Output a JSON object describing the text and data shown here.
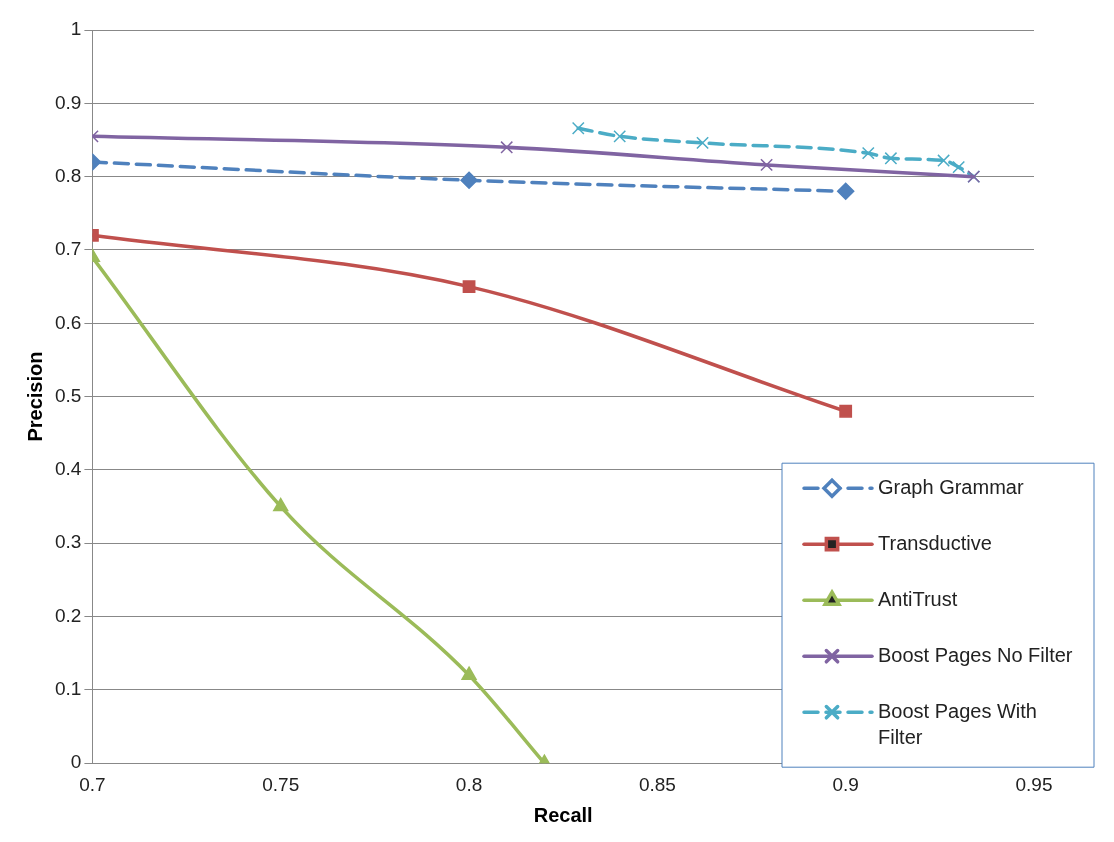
{
  "chart_data": {
    "type": "line",
    "xlabel": "Recall",
    "ylabel": "Precision",
    "xlim": [
      0.7,
      0.95
    ],
    "xticks": [
      0.7,
      0.75,
      0.8,
      0.85,
      0.9,
      0.95
    ],
    "ylim": [
      0,
      1
    ],
    "yticks": [
      0,
      0.1,
      0.2,
      0.3,
      0.4,
      0.5,
      0.6,
      0.7,
      0.8,
      0.9,
      1
    ],
    "grid": "y",
    "legend": "bottom right",
    "series": [
      {
        "name": "Graph Grammar",
        "color": "#4f81bd",
        "marker": "diamond",
        "line_style": "dashed",
        "x": [
          0.7,
          0.8,
          0.9
        ],
        "values": [
          0.82,
          0.795,
          0.78
        ]
      },
      {
        "name": "Transductive",
        "color": "#c0504d",
        "marker": "square",
        "line_style": "solid",
        "x": [
          0.7,
          0.8,
          0.9
        ],
        "values": [
          0.72,
          0.65,
          0.48
        ]
      },
      {
        "name": "AntiTrust",
        "color": "#9bbb59",
        "marker": "triangle",
        "line_style": "solid",
        "x": [
          0.7,
          0.75,
          0.8,
          0.82
        ],
        "values": [
          0.69,
          0.35,
          0.12,
          0
        ]
      },
      {
        "name": "Boost Pages No Filter",
        "color": "#8064a2",
        "marker": "cross",
        "line_style": "solid",
        "x": [
          0.7,
          0.81,
          0.879,
          0.934
        ],
        "values": [
          0.855,
          0.84,
          0.816,
          0.8
        ]
      },
      {
        "name": "Boost Pages With Filter",
        "color": "#4bacc6",
        "marker": "cross",
        "line_style": "dashed",
        "x": [
          0.829,
          0.84,
          0.862,
          0.906,
          0.912,
          0.926,
          0.93,
          0.934
        ],
        "values": [
          0.866,
          0.855,
          0.846,
          0.832,
          0.825,
          0.822,
          0.813,
          0.8
        ]
      }
    ]
  }
}
